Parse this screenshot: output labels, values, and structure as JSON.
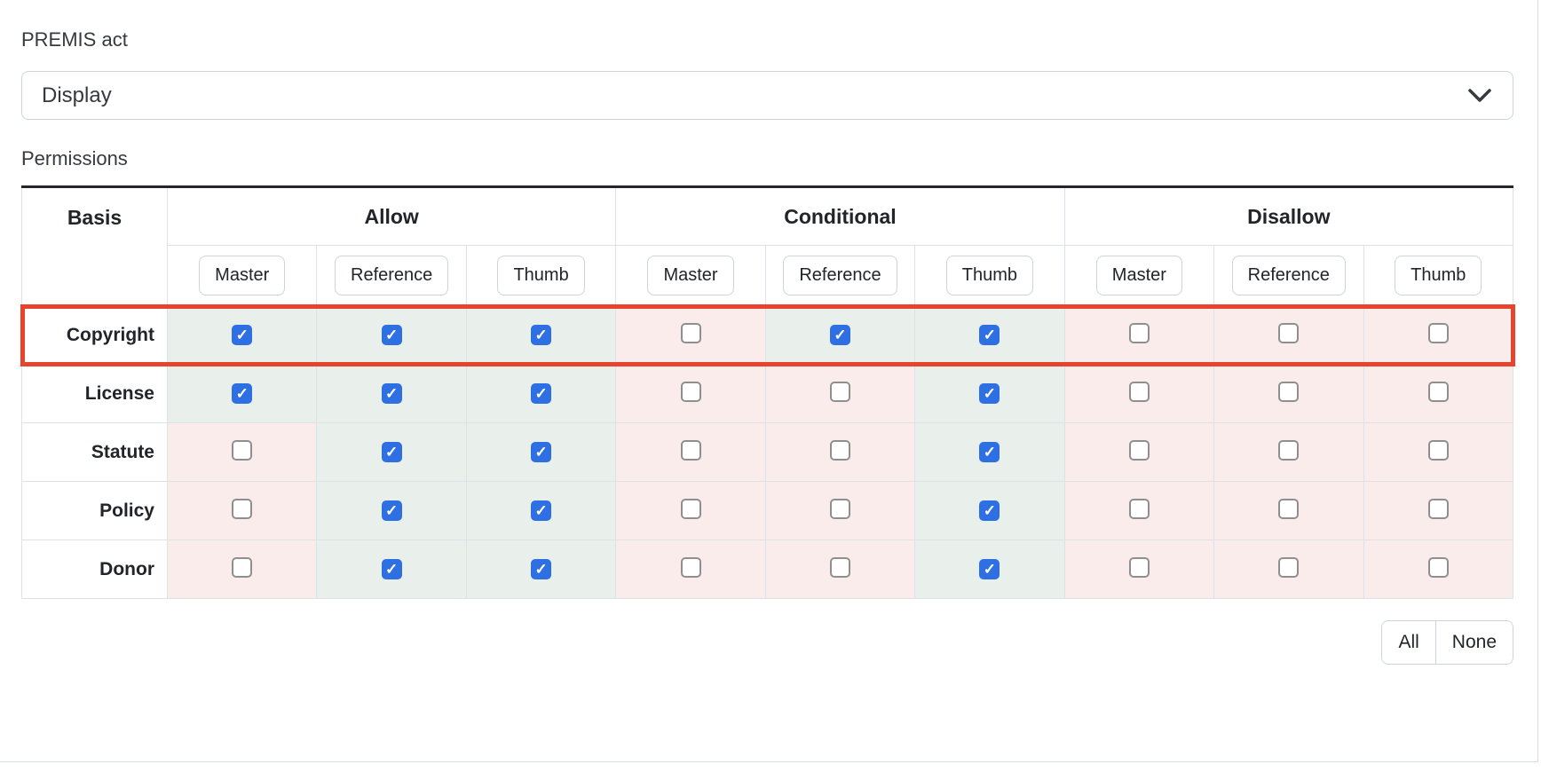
{
  "premis_act": {
    "label": "PREMIS act",
    "selected": "Display"
  },
  "permissions": {
    "label": "Permissions",
    "table": {
      "basis_header": "Basis",
      "groups": [
        {
          "label": "Allow"
        },
        {
          "label": "Conditional"
        },
        {
          "label": "Disallow"
        }
      ],
      "subcolumns": [
        "Master",
        "Reference",
        "Thumb"
      ],
      "rows": [
        {
          "label": "Copyright",
          "highlighted": true,
          "checks": [
            true,
            true,
            true,
            false,
            true,
            true,
            false,
            false,
            false
          ]
        },
        {
          "label": "License",
          "highlighted": false,
          "checks": [
            true,
            true,
            true,
            false,
            false,
            true,
            false,
            false,
            false
          ]
        },
        {
          "label": "Statute",
          "highlighted": false,
          "checks": [
            false,
            true,
            true,
            false,
            false,
            true,
            false,
            false,
            false
          ]
        },
        {
          "label": "Policy",
          "highlighted": false,
          "checks": [
            false,
            true,
            true,
            false,
            false,
            true,
            false,
            false,
            false
          ]
        },
        {
          "label": "Donor",
          "highlighted": false,
          "checks": [
            false,
            true,
            true,
            false,
            false,
            true,
            false,
            false,
            false
          ]
        }
      ]
    },
    "actions": {
      "all": "All",
      "none": "None"
    }
  },
  "icons": {
    "dropdown": "chevron-down-icon"
  },
  "colors": {
    "checkbox_checked": "#2f6fe4",
    "highlight_border": "#e8432d",
    "cell_checked_bg": "#e9efea",
    "cell_unchecked_bg": "#fbecec"
  }
}
